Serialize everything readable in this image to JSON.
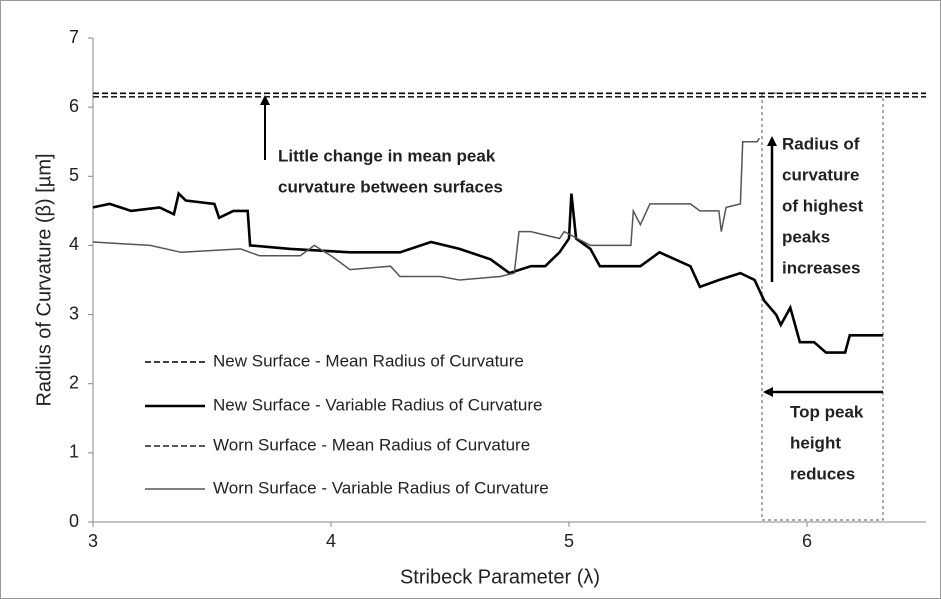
{
  "chart_data": {
    "type": "line",
    "x_label": "Stribeck Parameter (λ)",
    "y_label": "Radius of Curvature (β) [µm]",
    "xlim": [
      3,
      6.5
    ],
    "xticks": [
      3,
      4,
      5,
      6
    ],
    "ylim": [
      0,
      7
    ],
    "yticks": [
      0,
      1,
      2,
      3,
      4,
      5,
      6,
      7
    ],
    "grid": false,
    "legend": "left",
    "series": [
      {
        "name": "New Surface - Mean Radius of Curvature",
        "color": "#000000",
        "dashed": true,
        "x": [
          3,
          6.5
        ],
        "values": [
          6.2,
          6.2
        ]
      },
      {
        "name": "New Surface - Variable Radius of Curvature",
        "color": "#000000",
        "dashed": false,
        "x": [
          3.0,
          3.07,
          3.16,
          3.28,
          3.34,
          3.36,
          3.39,
          3.51,
          3.53,
          3.59,
          3.65,
          3.66,
          3.83,
          4.08,
          4.29,
          4.42,
          4.54,
          4.67,
          4.75,
          4.84,
          4.9,
          4.96,
          5.0,
          5.01,
          5.03,
          5.09,
          5.13,
          5.3,
          5.34,
          5.38,
          5.51,
          5.55,
          5.63,
          5.72,
          5.78,
          5.82,
          5.87,
          5.89,
          5.93,
          5.97,
          6.03,
          6.08,
          6.16,
          6.18,
          6.32
        ],
        "values": [
          4.55,
          4.6,
          4.5,
          4.55,
          4.45,
          4.75,
          4.65,
          4.6,
          4.4,
          4.5,
          4.5,
          4.0,
          3.95,
          3.9,
          3.9,
          4.05,
          3.95,
          3.8,
          3.6,
          3.7,
          3.7,
          3.9,
          4.1,
          4.75,
          4.1,
          3.95,
          3.7,
          3.7,
          3.8,
          3.9,
          3.7,
          3.4,
          3.5,
          3.6,
          3.5,
          3.2,
          3.0,
          2.85,
          3.1,
          2.6,
          2.6,
          2.45,
          2.45,
          2.7,
          2.7
        ]
      },
      {
        "name": "Worn Surface - Mean Radius of Curvature",
        "color": "#222222",
        "dashed": true,
        "x": [
          3,
          6.5
        ],
        "values": [
          6.15,
          6.15
        ]
      },
      {
        "name": "Worn Surface - Variable Radius of Curvature",
        "color": "#555555",
        "dashed": false,
        "x": [
          3.0,
          3.24,
          3.37,
          3.62,
          3.7,
          3.87,
          3.93,
          4.0,
          4.08,
          4.25,
          4.29,
          4.46,
          4.54,
          4.71,
          4.77,
          4.79,
          4.84,
          4.96,
          4.98,
          5.09,
          5.13,
          5.26,
          5.27,
          5.3,
          5.34,
          5.51,
          5.55,
          5.63,
          5.64,
          5.66,
          5.72,
          5.73,
          5.79,
          5.8
        ],
        "values": [
          4.05,
          4.0,
          3.9,
          3.95,
          3.85,
          3.85,
          4.0,
          3.85,
          3.65,
          3.7,
          3.55,
          3.55,
          3.5,
          3.55,
          3.6,
          4.2,
          4.2,
          4.1,
          4.2,
          4.0,
          4.0,
          4.0,
          4.5,
          4.3,
          4.6,
          4.6,
          4.5,
          4.5,
          4.2,
          4.55,
          4.6,
          5.5,
          5.5,
          5.55
        ]
      }
    ],
    "annotations": [
      {
        "lines": [
          "Little change in mean peak",
          "curvature between surfaces"
        ]
      },
      {
        "lines": [
          "Radius of",
          "curvature",
          "of highest",
          "peaks",
          "increases"
        ]
      },
      {
        "lines": [
          "Top peak",
          "height",
          "reduces"
        ]
      }
    ]
  }
}
